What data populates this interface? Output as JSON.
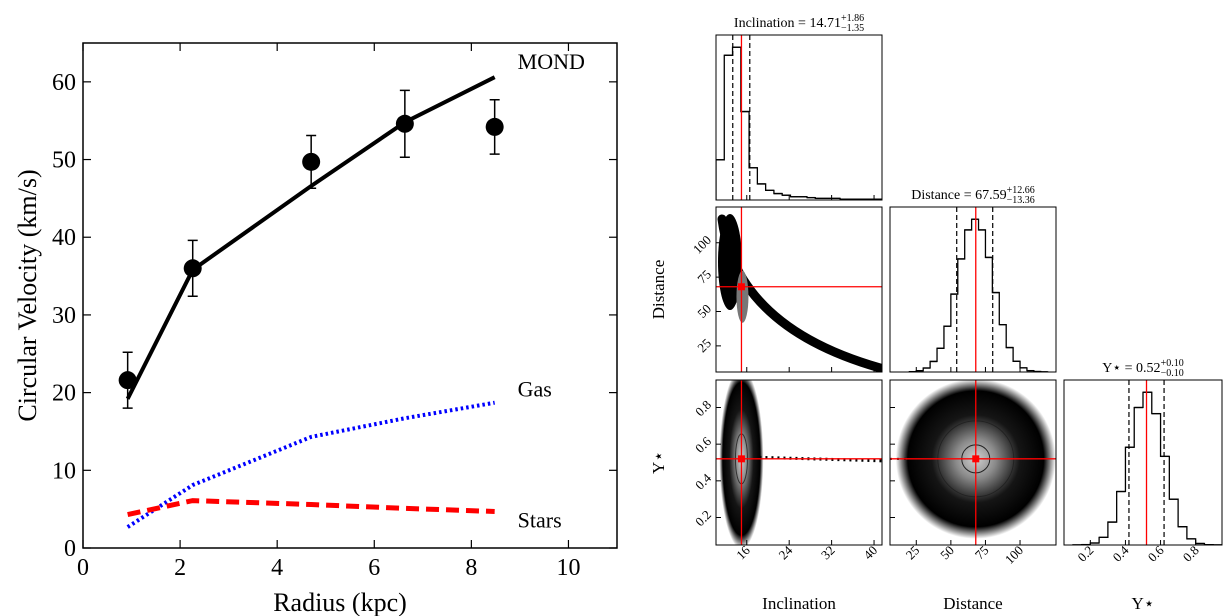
{
  "chart_data": [
    {
      "type": "line",
      "xlabel": "Radius (kpc)",
      "ylabel": "Circular Velocity (km/s)",
      "xlim": [
        0,
        11
      ],
      "ylim": [
        0,
        65
      ],
      "xticks": [
        0,
        2,
        4,
        6,
        8,
        10
      ],
      "yticks": [
        0,
        10,
        20,
        30,
        40,
        50,
        60
      ],
      "x": [
        0.92,
        2.26,
        4.7,
        6.63,
        8.48
      ],
      "series": [
        {
          "name": "MOND",
          "color": "#000000",
          "style": "solid",
          "values": [
            19.2,
            35.8,
            46.6,
            54.8,
            60.6
          ]
        },
        {
          "name": "Gas",
          "color": "#0000ff",
          "style": "dotted",
          "values": [
            2.7,
            8.1,
            14.3,
            16.7,
            18.7
          ]
        },
        {
          "name": "Stars",
          "color": "#ff0000",
          "style": "dashed",
          "values": [
            4.3,
            6.1,
            5.6,
            5.1,
            4.7
          ]
        }
      ],
      "points": {
        "color": "#000000",
        "values": [
          21.6,
          36,
          49.7,
          54.6,
          54.2
        ],
        "errors": [
          3.6,
          3.6,
          3.4,
          4.3,
          3.5
        ]
      }
    },
    {
      "type": "corner",
      "truth_color": "#ff0000",
      "params": [
        {
          "label": "Inclination",
          "lim": [
            10.2,
            41.5
          ],
          "ticks": [
            16,
            24,
            32,
            40
          ],
          "truth": 15,
          "quantiles": [
            13.36,
            16.57
          ],
          "title": "Inclination = 14.71",
          "title_sup": "+1.86",
          "title_sub": "−1.35",
          "bins": [
            10.2,
            11.76,
            13.32,
            14.88,
            16.44,
            18.0,
            19.56,
            21.12,
            22.68,
            24.24,
            25.8,
            27.36,
            28.92,
            30.48,
            32.04,
            33.6,
            35.16,
            36.72,
            38.28,
            39.84,
            41.4
          ],
          "counts": [
            0.25,
            0.9,
            0.95,
            0.55,
            0.2,
            0.1,
            0.06,
            0.04,
            0.03,
            0.02,
            0.02,
            0.015,
            0.01,
            0.01,
            0.01,
            0.005,
            0.005,
            0.005,
            0.005,
            0.005
          ]
        },
        {
          "label": "Distance",
          "lim": [
            6,
            126
          ],
          "ticks": [
            25,
            50,
            75,
            100
          ],
          "truth": 68,
          "quantiles": [
            54.23,
            80.25
          ],
          "title": "Distance = 67.59",
          "title_sup": "+12.66",
          "title_sub": "−13.36",
          "bins": [
            20,
            25,
            30,
            35,
            40,
            45,
            50,
            55,
            60,
            65,
            70,
            75,
            80,
            85,
            90,
            95,
            100,
            105,
            110,
            115,
            120
          ],
          "counts": [
            0.0024,
            0.0086,
            0.026,
            0.069,
            0.155,
            0.3,
            0.51,
            0.74,
            0.93,
            1.0,
            0.93,
            0.75,
            0.52,
            0.31,
            0.16,
            0.07,
            0.027,
            0.009,
            0.003,
            0.001
          ]
        },
        {
          "label": "Y⋆",
          "lim": [
            0.05,
            0.95
          ],
          "ticks": [
            0.2,
            0.4,
            0.6,
            0.8
          ],
          "truth": 0.52,
          "quantiles": [
            0.42,
            0.62
          ],
          "title": "Y⋆ = 0.52",
          "title_sup": "+0.10",
          "title_sub": "−0.10",
          "bins": [
            0.1,
            0.15,
            0.2,
            0.25,
            0.3,
            0.35,
            0.4,
            0.45,
            0.5,
            0.55,
            0.6,
            0.65,
            0.7,
            0.75,
            0.8,
            0.85,
            0.9,
            0.95
          ],
          "counts": [
            0.0004,
            0.0026,
            0.013,
            0.05,
            0.15,
            0.35,
            0.64,
            0.9,
            1.0,
            0.86,
            0.58,
            0.3,
            0.12,
            0.04,
            0.01,
            0.002,
            0.0004
          ]
        }
      ]
    }
  ]
}
